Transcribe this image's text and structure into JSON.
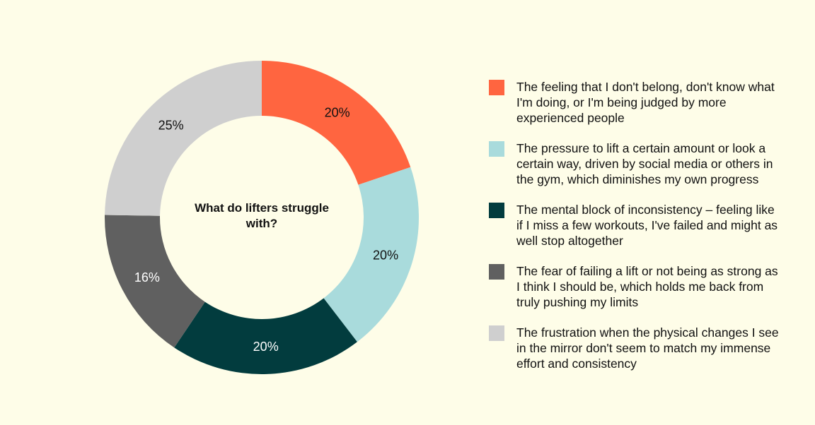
{
  "chart_data": {
    "type": "pie",
    "title": "What do lifters struggle with?",
    "slices": [
      {
        "label": "The feeling that I don't belong, don't know what I'm doing, or I'm being judged by more experienced people",
        "value": 20,
        "display": "20%",
        "color": "#ff6540"
      },
      {
        "label": "The pressure to lift a certain amount or look a certain way, driven by social media or others in the gym, which diminishes my own progress",
        "value": 20,
        "display": "20%",
        "color": "#a9dbdc"
      },
      {
        "label": "The mental block of inconsistency – feeling like if I miss a few workouts, I've failed and might as well stop altogether",
        "value": 20,
        "display": "20%",
        "color": "#023c3e"
      },
      {
        "label": "The fear of failing a lift or not being as strong as I think I should be, which holds me back from truly pushing my limits",
        "value": 16,
        "display": "16%",
        "color": "#606060"
      },
      {
        "label": "The frustration when the physical changes I see in the mirror don't seem to match my immense effort and consistency",
        "value": 25,
        "display": "25%",
        "color": "#cfcfcf"
      }
    ],
    "label_colors": [
      "#111111",
      "#111111",
      "#ffffff",
      "#ffffff",
      "#111111"
    ],
    "legend_placement": "right",
    "donut": true
  }
}
